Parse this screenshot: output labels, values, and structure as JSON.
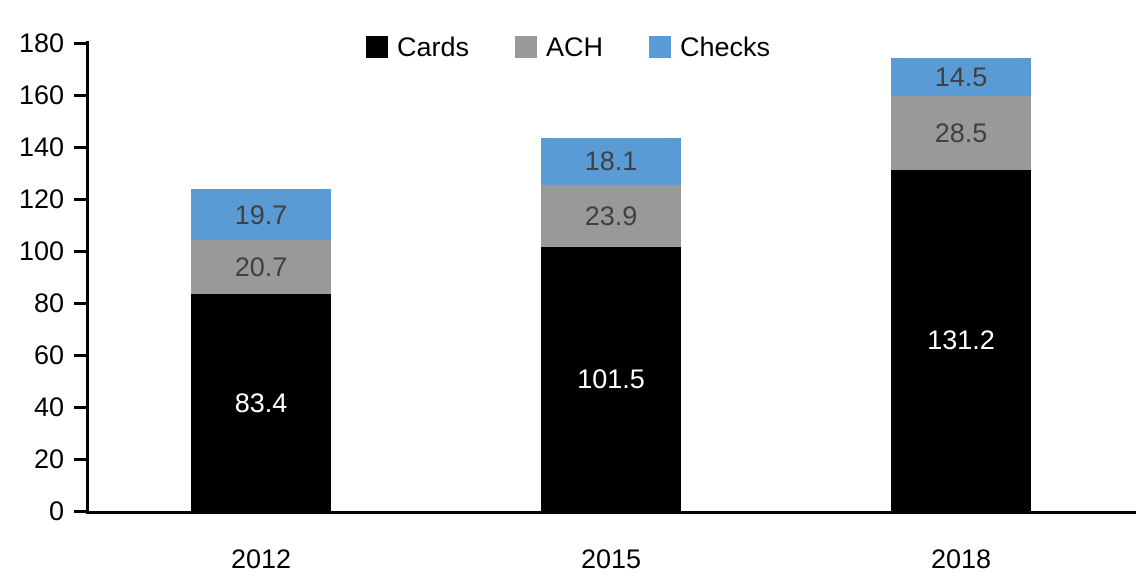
{
  "chart_data": {
    "type": "bar",
    "stacked": true,
    "title": "",
    "xlabel": "",
    "ylabel": "",
    "categories": [
      "2012",
      "2015",
      "2018"
    ],
    "series": [
      {
        "name": "Cards",
        "color": "#000000",
        "label_color": "#ffffff",
        "values": [
          83.4,
          101.5,
          131.2
        ]
      },
      {
        "name": "ACH",
        "color": "#999999",
        "label_color": "#404040",
        "values": [
          20.7,
          23.9,
          28.5
        ]
      },
      {
        "name": "Checks",
        "color": "#5B9BD5",
        "label_color": "#404040",
        "values": [
          19.7,
          18.1,
          14.5
        ]
      }
    ],
    "totals": [
      123.8,
      143.5,
      174.2
    ],
    "ylim": [
      0,
      180
    ],
    "ytick_step": 20,
    "ytick_labels": [
      "0",
      "20",
      "40",
      "60",
      "80",
      "100",
      "120",
      "140",
      "160",
      "180"
    ],
    "legend_position": "top-center",
    "legend_entries": [
      "Cards",
      "ACH",
      "Checks"
    ],
    "grid": false,
    "axis_color": "#000000",
    "data_labels_decimals": 1
  }
}
